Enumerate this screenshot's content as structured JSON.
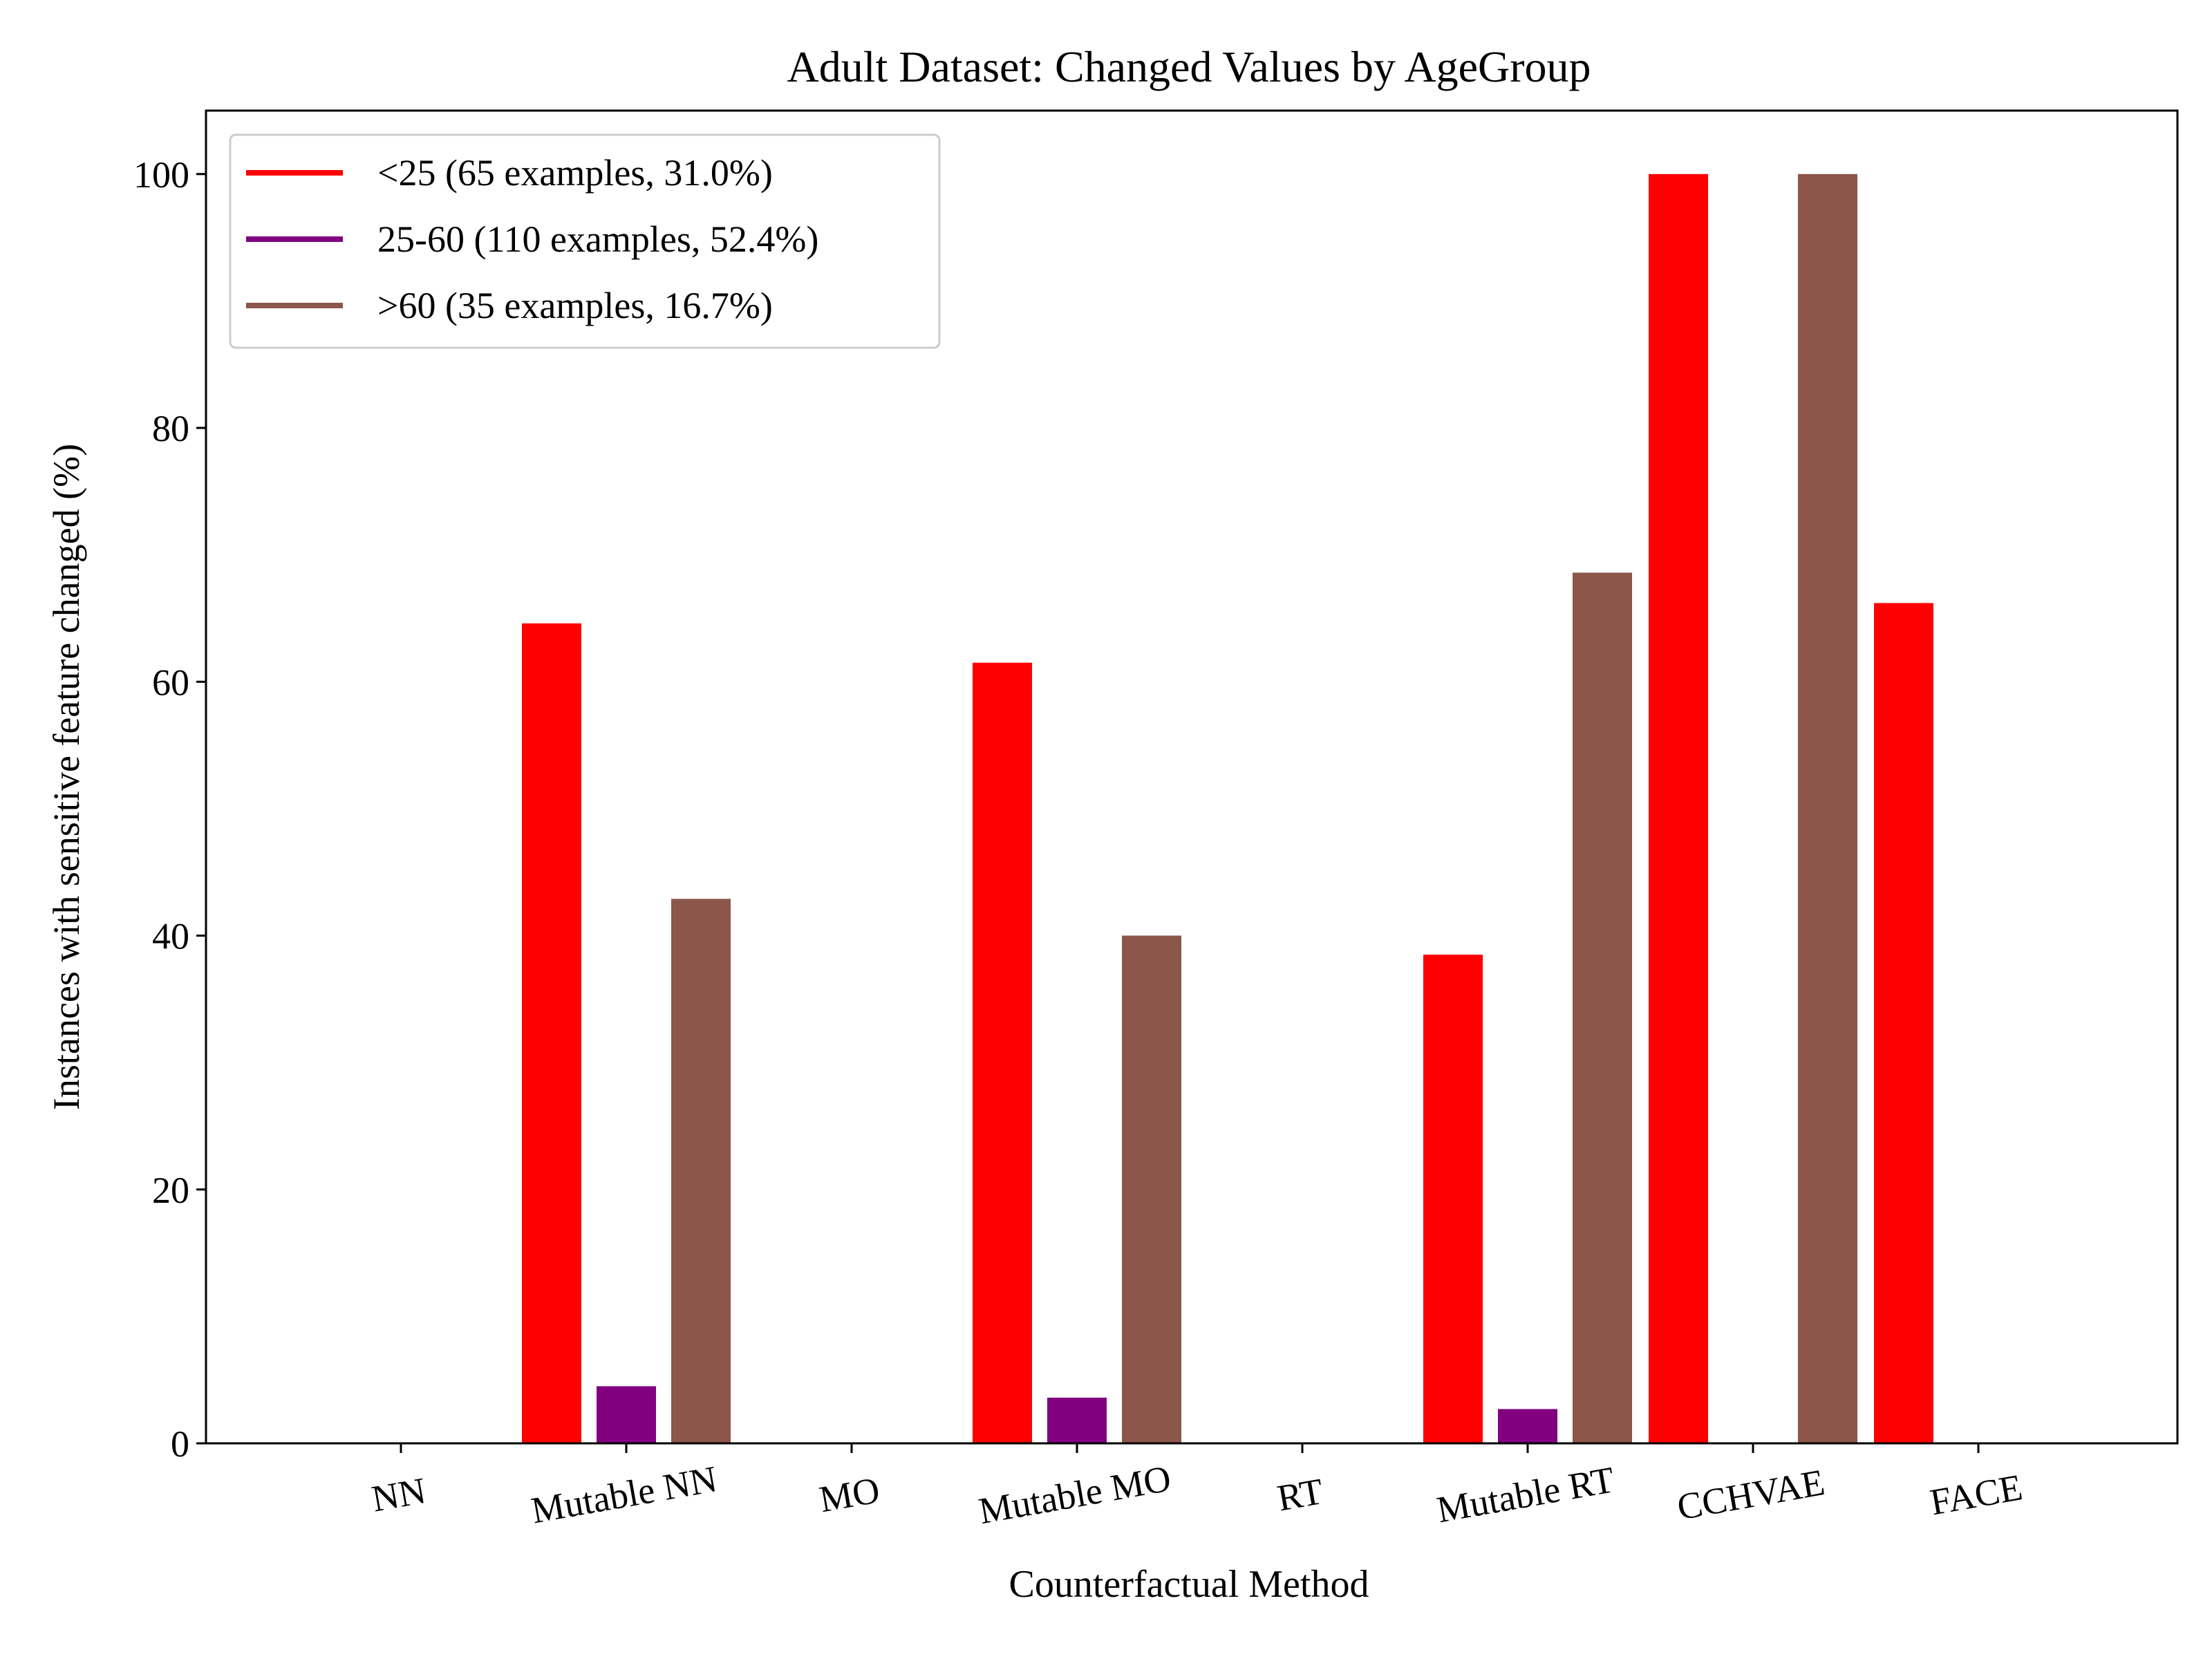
{
  "chart_data": {
    "type": "bar",
    "title": "Adult Dataset: Changed Values by AgeGroup",
    "xlabel": "Counterfactual Method",
    "ylabel": "Instances with sensitive feature changed (%)",
    "ylim": [
      0,
      105
    ],
    "yticks": [
      0,
      20,
      40,
      60,
      80,
      100
    ],
    "categories": [
      "NN",
      "Mutable NN",
      "MO",
      "Mutable MO",
      "RT",
      "Mutable RT",
      "CCHVAE",
      "FACE"
    ],
    "legend_position": "top-left",
    "grid": false,
    "series": [
      {
        "name": "<25 (65 examples, 31.0%)",
        "color": "#ff0000",
        "values": [
          0,
          64.6,
          0,
          61.5,
          0,
          38.5,
          100,
          66.2
        ]
      },
      {
        "name": "25-60 (110 examples, 52.4%)",
        "color": "#800080",
        "values": [
          0,
          4.5,
          0,
          3.6,
          0,
          2.7,
          0,
          0
        ]
      },
      {
        "name": ">60 (35 examples, 16.7%)",
        "color": "#8c564b",
        "values": [
          0,
          42.9,
          0,
          40.0,
          0,
          68.6,
          100,
          0
        ]
      }
    ]
  }
}
